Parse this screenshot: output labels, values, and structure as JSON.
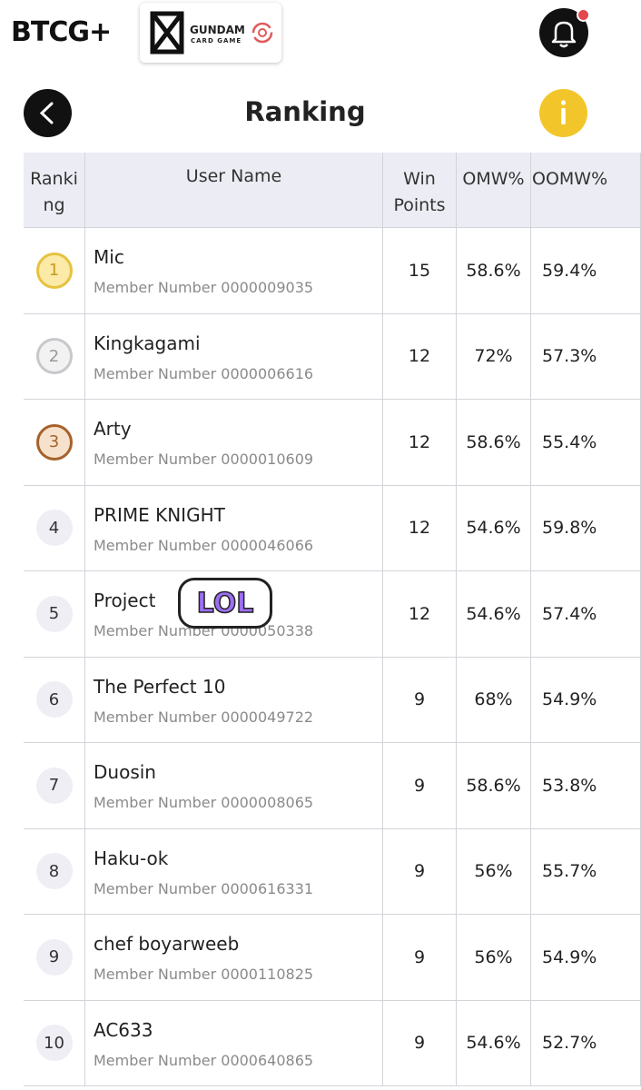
{
  "header": {
    "logo": "BTCG+",
    "game_logo": {
      "name": "GUNDAM",
      "subtitle": "CARD GAME"
    },
    "title": "Ranking"
  },
  "table": {
    "columns": [
      "Ranking",
      "User Name",
      "Win Points",
      "OMW%",
      "OOMW%"
    ],
    "rows": [
      {
        "rank": 1,
        "name": "Mic",
        "member": "Member Number 0000009035",
        "win_points": 15,
        "omw": "58.6%",
        "oomw": "59.4%"
      },
      {
        "rank": 2,
        "name": "Kingkagami",
        "member": "Member Number 0000006616",
        "win_points": 12,
        "omw": "72%",
        "oomw": "57.3%"
      },
      {
        "rank": 3,
        "name": "Arty",
        "member": "Member Number 0000010609",
        "win_points": 12,
        "omw": "58.6%",
        "oomw": "55.4%"
      },
      {
        "rank": 4,
        "name": "PRIME KNIGHT",
        "member": "Member Number 0000046066",
        "win_points": 12,
        "omw": "54.6%",
        "oomw": "59.8%"
      },
      {
        "rank": 5,
        "name": "Project",
        "member": "Member Number 0000050338",
        "win_points": 12,
        "omw": "54.6%",
        "oomw": "57.4%"
      },
      {
        "rank": 6,
        "name": "The Perfect 10",
        "member": "Member Number 0000049722",
        "win_points": 9,
        "omw": "68%",
        "oomw": "54.9%"
      },
      {
        "rank": 7,
        "name": "Duosin",
        "member": "Member Number 0000008065",
        "win_points": 9,
        "omw": "58.6%",
        "oomw": "53.8%"
      },
      {
        "rank": 8,
        "name": "Haku-ok",
        "member": "Member Number 0000616331",
        "win_points": 9,
        "omw": "56%",
        "oomw": "55.7%"
      },
      {
        "rank": 9,
        "name": "chef boyarweeb",
        "member": "Member Number 0000110825",
        "win_points": 9,
        "omw": "56%",
        "oomw": "54.9%"
      },
      {
        "rank": 10,
        "name": "AC633",
        "member": "Member Number 0000640865",
        "win_points": 9,
        "omw": "54.6%",
        "oomw": "52.7%"
      }
    ]
  },
  "sticker": "LOL"
}
